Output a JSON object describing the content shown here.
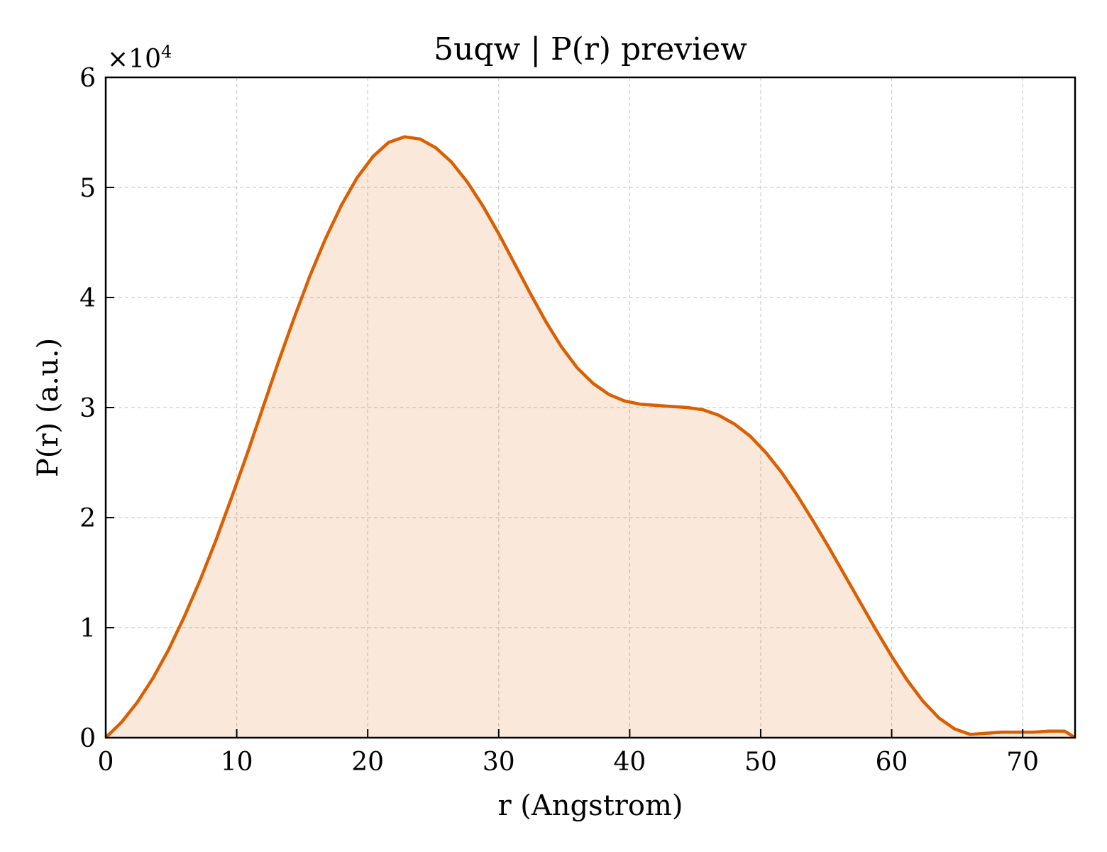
{
  "chart_data": {
    "type": "area",
    "title": "5uqw | P(r) preview",
    "xlabel": "r (Angstrom)",
    "ylabel": "P(r) (a.u.)",
    "y_scale_label": "×10",
    "y_scale_exponent": "4",
    "xlim": [
      0,
      74
    ],
    "ylim": [
      0,
      6
    ],
    "x_ticks": [
      0,
      10,
      20,
      30,
      40,
      50,
      60,
      70
    ],
    "x_tick_labels": [
      "0",
      "10",
      "20",
      "30",
      "40",
      "50",
      "60",
      "70"
    ],
    "y_ticks": [
      0,
      1,
      2,
      3,
      4,
      5,
      6
    ],
    "y_tick_labels": [
      "0",
      "1",
      "2",
      "3",
      "4",
      "5",
      "6"
    ],
    "grid": true,
    "line_color": "#d95f02",
    "fill_color": "#d95f02",
    "fill_opacity": 0.14,
    "series": [
      {
        "x": [
          0,
          1.2,
          2.4,
          3.6,
          4.8,
          6.0,
          7.2,
          8.4,
          9.6,
          10.8,
          12.0,
          13.2,
          14.4,
          15.6,
          16.8,
          18.0,
          19.2,
          20.4,
          21.6,
          22.8,
          24.0,
          25.2,
          26.4,
          27.6,
          28.8,
          30.0,
          31.2,
          32.4,
          33.6,
          34.8,
          36.0,
          37.2,
          38.4,
          39.6,
          40.8,
          42.0,
          43.2,
          44.4,
          45.6,
          46.8,
          48.0,
          49.2,
          50.4,
          51.6,
          52.8,
          54.0,
          55.2,
          56.4,
          57.6,
          58.8,
          60.0,
          61.2,
          62.4,
          63.6,
          64.8,
          66.0,
          67.2,
          68.4,
          69.6,
          70.8,
          72.0,
          73.2,
          74.0
        ],
        "y": [
          0.0,
          0.14,
          0.32,
          0.54,
          0.8,
          1.1,
          1.43,
          1.79,
          2.18,
          2.58,
          3.0,
          3.42,
          3.82,
          4.2,
          4.54,
          4.84,
          5.09,
          5.28,
          5.41,
          5.46,
          5.44,
          5.36,
          5.23,
          5.05,
          4.83,
          4.58,
          4.31,
          4.04,
          3.78,
          3.55,
          3.36,
          3.22,
          3.12,
          3.06,
          3.03,
          3.02,
          3.01,
          3.0,
          2.98,
          2.93,
          2.85,
          2.74,
          2.59,
          2.41,
          2.2,
          1.97,
          1.73,
          1.48,
          1.23,
          0.98,
          0.74,
          0.52,
          0.33,
          0.18,
          0.08,
          0.03,
          0.04,
          0.05,
          0.05,
          0.05,
          0.06,
          0.06,
          0.0
        ]
      }
    ]
  }
}
